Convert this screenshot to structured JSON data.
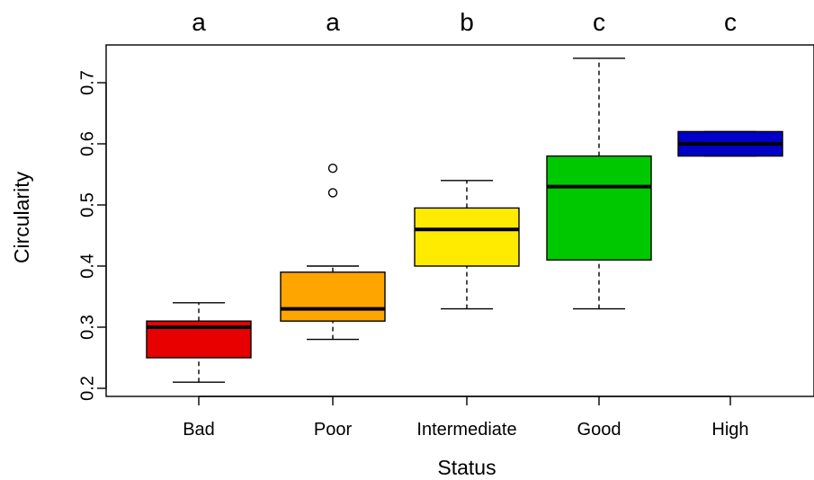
{
  "chart_data": {
    "type": "boxplot",
    "xlabel": "Status",
    "ylabel": "Circularity",
    "ylim": [
      0.2,
      0.75
    ],
    "yticks": [
      "0.2",
      "0.3",
      "0.4",
      "0.5",
      "0.6",
      "0.7"
    ],
    "grid": false,
    "legend": "none",
    "categories": [
      "Bad",
      "Poor",
      "Intermediate",
      "Good",
      "High"
    ],
    "group_letters": [
      "a",
      "a",
      "b",
      "c",
      "c"
    ],
    "boxes": [
      {
        "category": "Bad",
        "whisker_low": 0.21,
        "q1": 0.25,
        "median": 0.3,
        "q3": 0.31,
        "whisker_high": 0.34,
        "outliers": [],
        "color": "#e60000"
      },
      {
        "category": "Poor",
        "whisker_low": 0.28,
        "q1": 0.31,
        "median": 0.33,
        "q3": 0.39,
        "whisker_high": 0.4,
        "outliers": [
          0.52,
          0.56
        ],
        "color": "#ffa500"
      },
      {
        "category": "Intermediate",
        "whisker_low": 0.33,
        "q1": 0.4,
        "median": 0.46,
        "q3": 0.495,
        "whisker_high": 0.54,
        "outliers": [],
        "color": "#ffeb00"
      },
      {
        "category": "Good",
        "whisker_low": 0.33,
        "q1": 0.41,
        "median": 0.53,
        "q3": 0.58,
        "whisker_high": 0.74,
        "outliers": [],
        "color": "#00c800"
      },
      {
        "category": "High",
        "whisker_low": 0.58,
        "q1": 0.58,
        "median": 0.6,
        "q3": 0.62,
        "whisker_high": 0.62,
        "outliers": [],
        "color": "#0000c8"
      }
    ]
  }
}
